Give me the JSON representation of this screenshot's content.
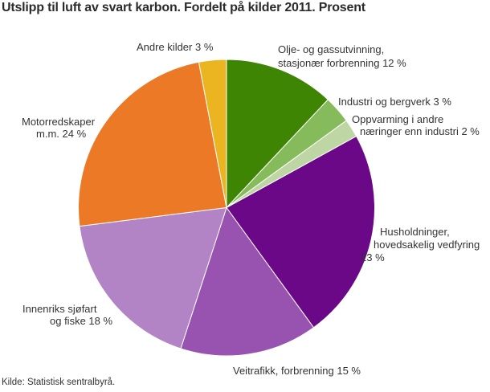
{
  "title": "Utslipp til luft av svart karbon. Fordelt på kilder 2011. Prosent",
  "source": "Kilde: Statistisk sentralbyrå.",
  "chart_data": {
    "type": "pie",
    "title": "Utslipp til luft av svart karbon. Fordelt på kilder 2011. Prosent",
    "unit": "percent",
    "start_angle_deg": 0,
    "direction": "clockwise",
    "slices": [
      {
        "label": "Olje- og gassutvinning, stasjonær forbrenning",
        "value": 12,
        "color": "#3E8504"
      },
      {
        "label": "Industri og bergverk",
        "value": 3,
        "color": "#86BB5C"
      },
      {
        "label": "Oppvarming i andre næringer enn industri",
        "value": 2,
        "color": "#BDD6A4"
      },
      {
        "label": "Husholdninger, hovedsakelig vedfyring",
        "value": 23,
        "color": "#6A0887"
      },
      {
        "label": "Veitrafikk, forbrenning",
        "value": 15,
        "color": "#9852B0"
      },
      {
        "label": "Innenriks sjøfart og fiske",
        "value": 18,
        "color": "#B283C5"
      },
      {
        "label": "Motorredskaper m.m.",
        "value": 24,
        "color": "#EB7925"
      },
      {
        "label": "Andre kilder",
        "value": 3,
        "color": "#EBB421"
      }
    ]
  },
  "labels": {
    "andre_kilder": "Andre kilder 3 %",
    "olje_gass_line1": "Olje- og gassutvinning,",
    "olje_gass_line2": "stasjonær forbrenning 12 %",
    "industri": "Industri og bergverk 3 %",
    "oppvarming_line1": "Oppvarming i andre",
    "oppvarming_line2": "næringer enn industri 2 %",
    "husholdninger_line1": "Husholdninger,",
    "husholdninger_line2": "hovedsakelig vedfyring",
    "husholdninger_line3": "23 %",
    "veitrafikk": "Veitrafikk, forbrenning 15 %",
    "innenriks_line1": "Innenriks sjøfart",
    "innenriks_line2": "og fiske 18 %",
    "motorredskaper_line1": "Motorredskaper",
    "motorredskaper_line2": "m.m. 24 %"
  }
}
